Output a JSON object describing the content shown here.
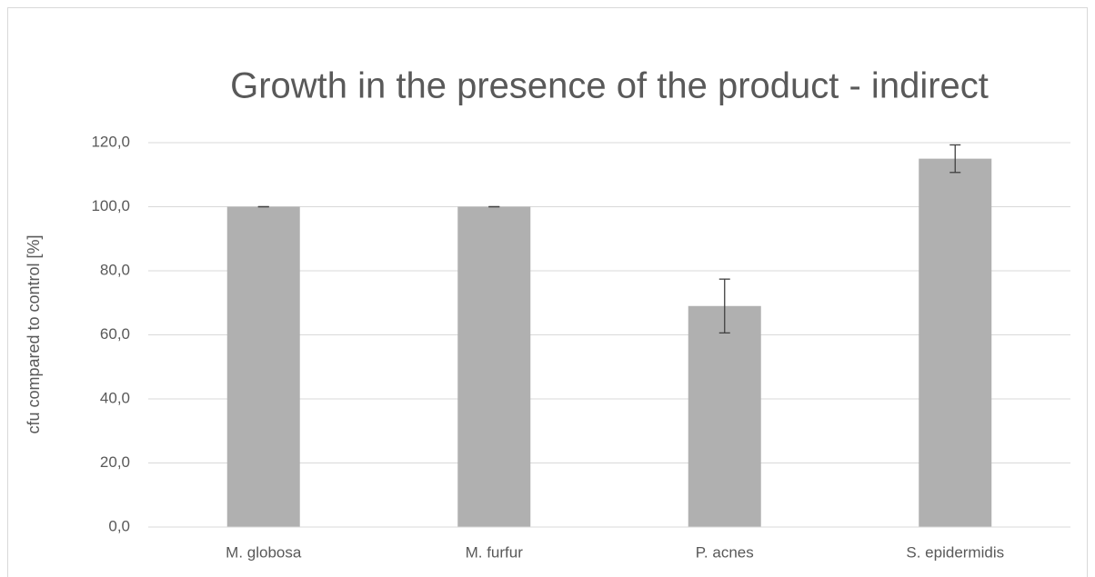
{
  "chart_data": {
    "type": "bar",
    "title": "Growth in the presence of the product - indirect",
    "y_label": "cfu compared to control [%]",
    "categories": [
      "M. globosa",
      "M. furfur",
      "P. acnes",
      "S. epidermidis"
    ],
    "values": [
      100,
      100,
      69,
      115
    ],
    "errors": [
      0,
      0,
      8.4,
      4.3
    ],
    "color": "#b0b0b0",
    "ylim": [
      0,
      120
    ],
    "yticks": [
      {
        "value": 0,
        "label": "0,0"
      },
      {
        "value": 20,
        "label": "20,0"
      },
      {
        "value": 40,
        "label": "40,0"
      },
      {
        "value": 60,
        "label": "60,0"
      },
      {
        "value": 80,
        "label": "80,0"
      },
      {
        "value": 100,
        "label": "100,0"
      },
      {
        "value": 120,
        "label": "120,0"
      }
    ],
    "grid": true
  }
}
